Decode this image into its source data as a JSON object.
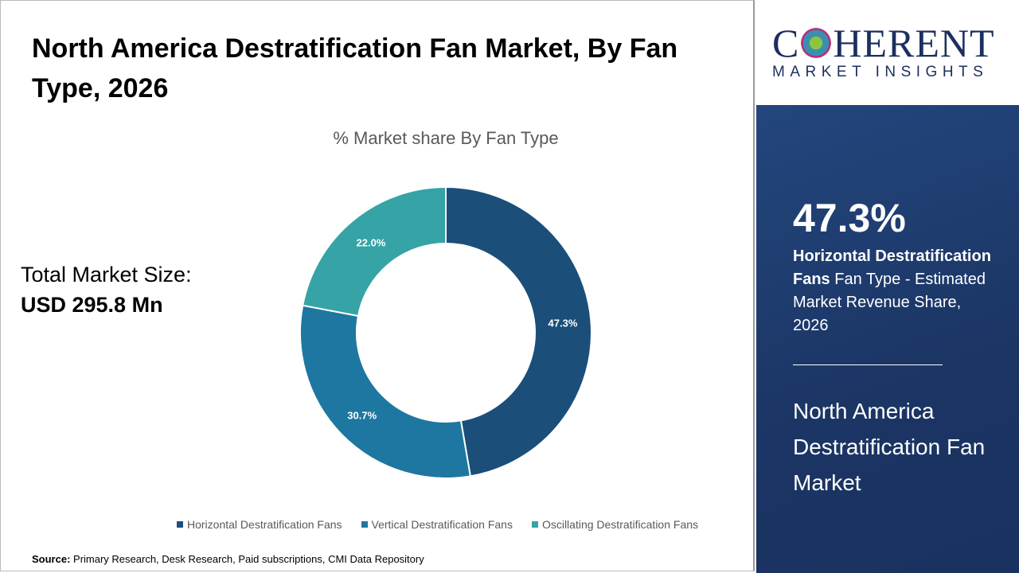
{
  "title": "North America Destratification Fan Market, By Fan Type, 2026",
  "total_market": {
    "label": "Total Market Size:",
    "value": "USD 295.8 Mn"
  },
  "source": {
    "label": "Source:",
    "text": " Primary Research, Desk Research, Paid subscriptions, CMI Data Repository"
  },
  "logo": {
    "name": "COHERENT",
    "tagline": "MARKET INSIGHTS"
  },
  "panel": {
    "highlight_value": "47.3%",
    "highlight_bold": "Horizontal Destratification Fans",
    "highlight_rest": " Fan Type - Estimated Market Revenue Share, 2026",
    "market_name": "North America Destratification Fan Market"
  },
  "chart_data": {
    "type": "pie",
    "donut": true,
    "title": "% Market share By Fan Type",
    "categories": [
      "Horizontal Destratification Fans",
      "Vertical Destratification Fans",
      "Oscillating Destratification Fans"
    ],
    "values": [
      47.3,
      30.7,
      22.0
    ],
    "labels": [
      "47.3%",
      "30.7%",
      "22.0%"
    ],
    "colors": [
      "#1b4f7a",
      "#1d77a1",
      "#36a3a6"
    ],
    "legend_position": "bottom"
  }
}
